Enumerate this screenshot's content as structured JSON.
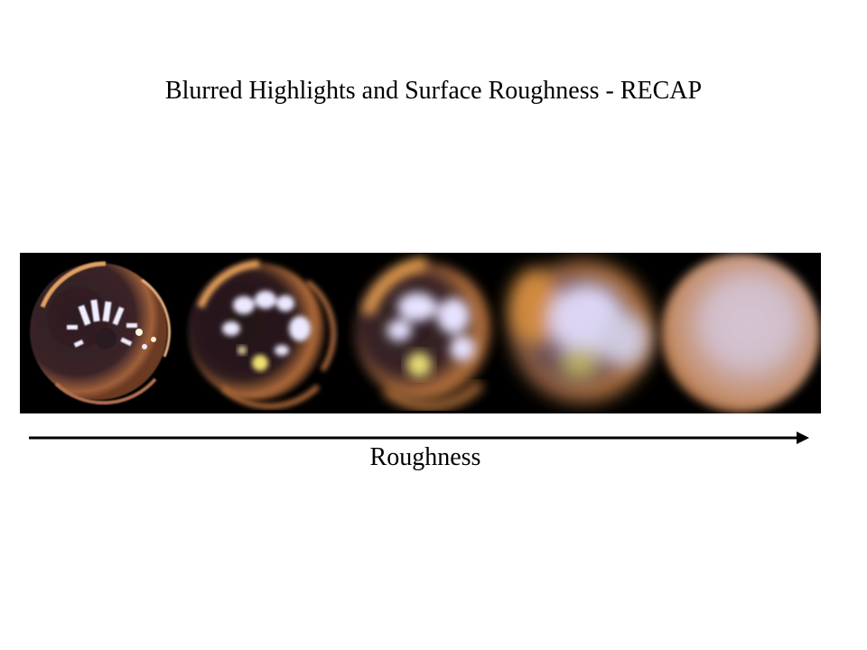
{
  "slide": {
    "title": "Blurred Highlights and Surface Roughness - RECAP",
    "axis_label": "Roughness"
  },
  "spheres": [
    {
      "name": "sphere-roughness-1",
      "roughness_rank": 1
    },
    {
      "name": "sphere-roughness-2",
      "roughness_rank": 2
    },
    {
      "name": "sphere-roughness-3",
      "roughness_rank": 3
    },
    {
      "name": "sphere-roughness-4",
      "roughness_rank": 4
    },
    {
      "name": "sphere-roughness-5",
      "roughness_rank": 5
    }
  ],
  "colors": {
    "background": "#ffffff",
    "strip": "#000000",
    "arrow": "#000000",
    "warm_rim": "#c87a3a",
    "highlight": "#e8e6ff",
    "diffuse": "#cfa99e"
  }
}
